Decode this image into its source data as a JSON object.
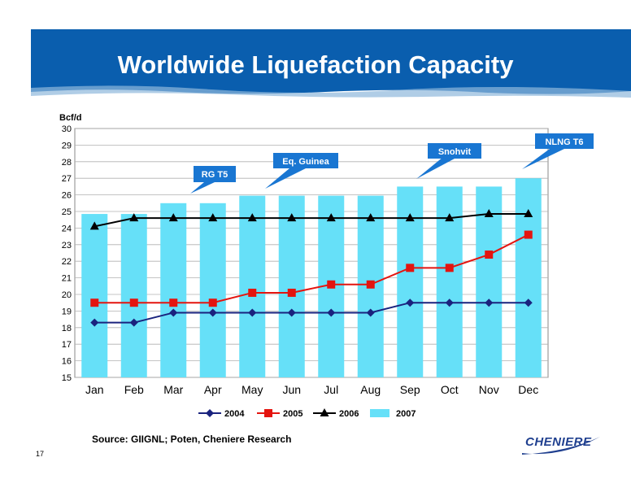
{
  "slide": {
    "title": "Worldwide Liquefaction Capacity",
    "source": "Source: GIIGNL; Poten, Cheniere Research",
    "page_number": "17",
    "logo_text": "CHENIERE"
  },
  "colors": {
    "banner": "#0a5eae",
    "bar_2007": "#66e0f8",
    "line_2004": "#1a237e",
    "line_2005": "#e4140f",
    "line_2006": "#000000",
    "callout": "#1976d2"
  },
  "chart_data": {
    "type": "bar",
    "ylabel": "Bcf/d",
    "ylim": [
      15,
      30
    ],
    "yticks": [
      15,
      16,
      17,
      18,
      19,
      20,
      21,
      22,
      23,
      24,
      25,
      26,
      27,
      28,
      29,
      30
    ],
    "categories": [
      "Jan",
      "Feb",
      "Mar",
      "Apr",
      "May",
      "Jun",
      "Jul",
      "Aug",
      "Sep",
      "Oct",
      "Nov",
      "Dec"
    ],
    "grid": true,
    "legend_position": "bottom",
    "series": [
      {
        "name": "2004",
        "kind": "line",
        "marker": "diamond",
        "values": [
          18.3,
          18.3,
          18.9,
          18.9,
          18.9,
          18.9,
          18.9,
          18.9,
          19.5,
          19.5,
          19.5,
          19.5
        ]
      },
      {
        "name": "2005",
        "kind": "line",
        "marker": "square",
        "values": [
          19.5,
          19.5,
          19.5,
          19.5,
          20.1,
          20.1,
          20.6,
          20.6,
          21.6,
          21.6,
          22.4,
          23.6
        ]
      },
      {
        "name": "2006",
        "kind": "line",
        "marker": "triangle",
        "values": [
          24.1,
          24.6,
          24.6,
          24.6,
          24.6,
          24.6,
          24.6,
          24.6,
          24.6,
          24.6,
          24.85,
          24.85
        ]
      },
      {
        "name": "2007",
        "kind": "bar",
        "values": [
          24.85,
          24.85,
          25.5,
          25.5,
          25.95,
          25.95,
          25.95,
          25.95,
          26.5,
          26.5,
          26.5,
          27.0
        ]
      }
    ],
    "annotations": [
      {
        "text": "RG T5",
        "category": "Apr"
      },
      {
        "text": "Eq. Guinea",
        "category": "Jun"
      },
      {
        "text": "Snohvit",
        "category": "Sep"
      },
      {
        "text": "NLNG T6",
        "category": "Dec"
      }
    ]
  }
}
